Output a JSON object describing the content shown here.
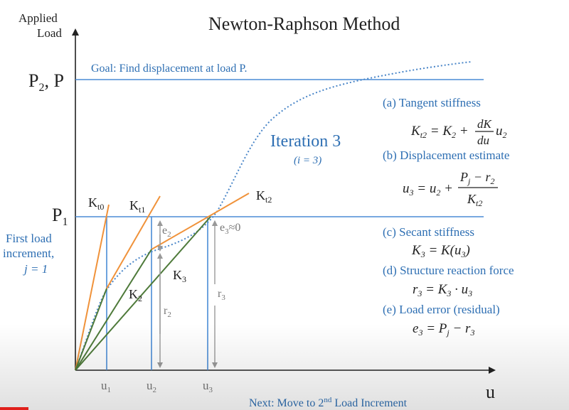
{
  "title": "Newton-Raphson Method",
  "goal_text": "Goal:  Find displacement at load P.",
  "next_text_pre": "Next:  Move to 2",
  "next_text_sup": "nd",
  "next_text_post": " Load Increment",
  "axis": {
    "y_label_line1": "Applied",
    "y_label_line2": "Load",
    "x_label": "u",
    "p2_label": "P",
    "p2_sub": "2",
    "p2_suffix": ", P",
    "p1_label": "P",
    "p1_sub": "1"
  },
  "first_load": {
    "line1": "First load",
    "line2": "increment,",
    "line3": "j = 1"
  },
  "iteration": {
    "title": "Iteration 3",
    "sub": "(i = 3)"
  },
  "u_ticks": [
    {
      "name": "u-tick-1",
      "base": "u",
      "sub": "1"
    },
    {
      "name": "u-tick-2",
      "base": "u",
      "sub": "2"
    },
    {
      "name": "u-tick-3",
      "base": "u",
      "sub": "3"
    }
  ],
  "tangent_labels": [
    {
      "name": "kt0-label",
      "base": "K",
      "sub": "t0"
    },
    {
      "name": "kt1-label",
      "base": "K",
      "sub": "t1"
    },
    {
      "name": "kt2-label",
      "base": "K",
      "sub": "t2"
    }
  ],
  "secant_labels": [
    {
      "name": "k2-label",
      "base": "K",
      "sub": "2"
    },
    {
      "name": "k3-label",
      "base": "K",
      "sub": "3"
    }
  ],
  "error_labels": {
    "e2_base": "e",
    "e2_sub": "2",
    "e3_base": "e",
    "e3_sub": "3",
    "e3_suffix": "≈0",
    "r2_base": "r",
    "r2_sub": "2",
    "r3_base": "r",
    "r3_sub": "3"
  },
  "steps": {
    "a_title": "(a) Tangent stiffness",
    "b_title": "(b) Displacement estimate",
    "c_title": "(c) Secant stiffness",
    "d_title": "(d) Structure reaction force",
    "e_title": "(e) Load error (residual)"
  },
  "equations": {
    "a": {
      "lhs": "K",
      "lhs_sub": "t2",
      "mid": " = K",
      "mid_sub": "2",
      "plus": " + ",
      "num": "dK",
      "den": "du",
      "tail": "u",
      "tail_sub": "2"
    },
    "b": {
      "lhs": "u",
      "lhs_sub": "3",
      "mid": " = u",
      "mid_sub": "2",
      "plus": " + ",
      "num_a": "P",
      "num_a_sub": "j",
      "num_b": " − r",
      "num_b_sub": "2",
      "den": "K",
      "den_sub": "t2"
    },
    "c": {
      "lhs": "K",
      "lhs_sub": "3",
      "rhs": " = K(u",
      "rhs_sub": "3",
      "rhs_end": ")"
    },
    "d": {
      "lhs": "r",
      "lhs_sub": "3",
      "rhs": " = K",
      "rhs_sub": "3",
      "dot": " · u",
      "dot_sub": "3"
    },
    "e": {
      "lhs": "e",
      "lhs_sub": "3",
      "rhs": " = P",
      "rhs_sub": "j",
      "minus": " − r",
      "minus_sub": "3"
    }
  },
  "colors": {
    "axis": "#222222",
    "blue": "#4a8cd6",
    "orange": "#f0923a",
    "green": "#4e7a3a",
    "gray": "#999999",
    "curve": "#4a86c8"
  }
}
